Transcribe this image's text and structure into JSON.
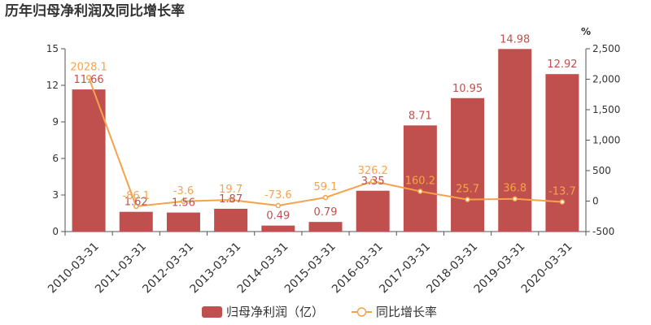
{
  "chart_data": {
    "type": "bar+line",
    "title": "历年归母净利润及同比增长率",
    "categories": [
      "2010-03-31",
      "2011-03-31",
      "2012-03-31",
      "2013-03-31",
      "2014-03-31",
      "2015-03-31",
      "2016-03-31",
      "2017-03-31",
      "2018-03-31",
      "2019-03-31",
      "2020-03-31"
    ],
    "series": [
      {
        "name": "归母净利润（亿）",
        "type": "bar",
        "axis": "left",
        "color": "#c0504d",
        "values": [
          11.66,
          1.62,
          1.56,
          1.87,
          0.49,
          0.79,
          3.35,
          8.71,
          10.95,
          14.98,
          12.92
        ],
        "labels": [
          "11.66",
          "1.62",
          "1.56",
          "1.87",
          "0.49",
          "0.79",
          "3.35",
          "8.71",
          "10.95",
          "14.98",
          "12.92"
        ]
      },
      {
        "name": "同比增长率",
        "type": "line",
        "axis": "right",
        "color": "#f7a24b",
        "values": [
          2028.1,
          -86.1,
          -3.6,
          19.7,
          -73.6,
          59.1,
          326.2,
          160.2,
          25.7,
          36.8,
          -13.7
        ],
        "labels": [
          "2028.1",
          "-86.1",
          "-3.6",
          "19.7",
          "-73.6",
          "59.1",
          "326.2",
          "160.2",
          "25.7",
          "36.8",
          "-13.7"
        ]
      }
    ],
    "y_left": {
      "range": [
        0,
        15
      ],
      "ticks": [
        0,
        3,
        6,
        9,
        12,
        15
      ],
      "tick_labels": [
        "0",
        "3",
        "6",
        "9",
        "12",
        "15"
      ]
    },
    "y_right": {
      "range": [
        -500,
        2500
      ],
      "ticks": [
        -500,
        0,
        500,
        1000,
        1500,
        2000,
        2500
      ],
      "tick_labels": [
        "-500",
        "0",
        "500",
        "1,000",
        "1,500",
        "2,000",
        "2,500"
      ],
      "unit": "%"
    },
    "grid": false,
    "legend": "bottom-center"
  }
}
